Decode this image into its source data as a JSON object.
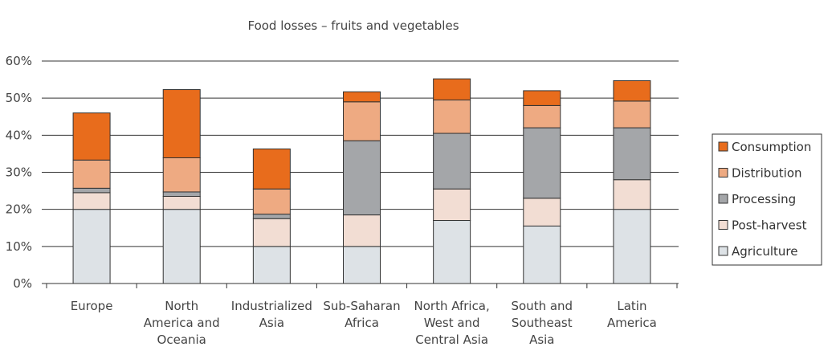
{
  "chart_data": {
    "type": "bar",
    "stacked": true,
    "title": "Food losses – fruits and vegetables",
    "xlabel": "",
    "ylabel": "",
    "ylim": [
      0,
      60
    ],
    "yticks": [
      "0%",
      "10%",
      "20%",
      "30%",
      "40%",
      "50%",
      "60%"
    ],
    "grid": true,
    "legend_position": "right",
    "categories": [
      [
        "Europe"
      ],
      [
        "North",
        "America and",
        "Oceania"
      ],
      [
        "Industrialized",
        "Asia"
      ],
      [
        "Sub-Saharan",
        "Africa"
      ],
      [
        "North Africa,",
        "West and",
        "Central Asia"
      ],
      [
        "South and",
        "Southeast",
        "Asia"
      ],
      [
        "Latin",
        "America"
      ]
    ],
    "series": [
      {
        "name": "Agriculture",
        "color": "#dde2e6",
        "values": [
          20,
          20,
          10,
          10,
          17,
          15.5,
          20
        ]
      },
      {
        "name": "Post-harvest",
        "color": "#f2ddd3",
        "values": [
          4.5,
          3.5,
          7.5,
          8.5,
          8.5,
          7.5,
          8
        ]
      },
      {
        "name": "Processing",
        "color": "#a4a6a9",
        "values": [
          1.2,
          1.2,
          1.2,
          20,
          15,
          19,
          14
        ]
      },
      {
        "name": "Distribution",
        "color": "#eeaa82",
        "values": [
          7.6,
          9.2,
          6.8,
          10.5,
          9,
          6,
          7.2
        ]
      },
      {
        "name": "Consumption",
        "color": "#e86c1c",
        "values": [
          12.7,
          18.4,
          10.8,
          2.7,
          5.7,
          4,
          5.5
        ]
      }
    ]
  }
}
